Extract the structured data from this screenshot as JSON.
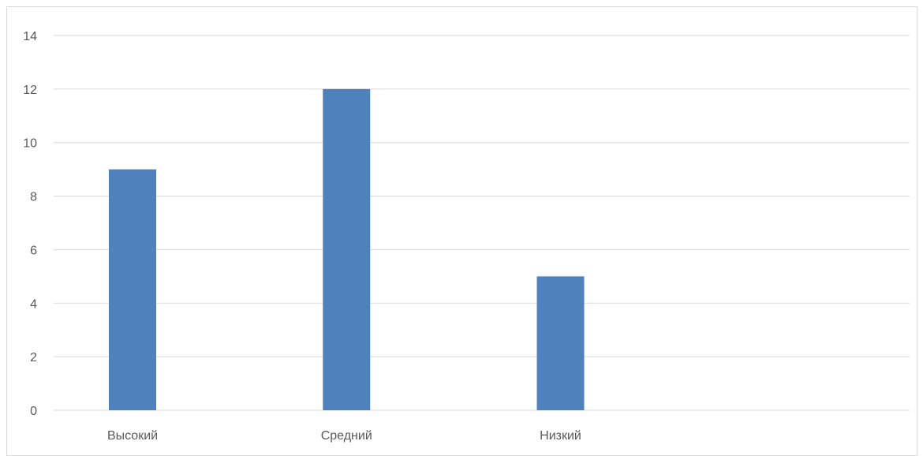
{
  "chart_data": {
    "type": "bar",
    "categories": [
      "Высокий",
      "Средний",
      "Низкий",
      ""
    ],
    "series": [
      {
        "values": [
          9,
          12,
          5,
          null
        ]
      }
    ],
    "ylim": [
      0,
      14
    ],
    "yticks": [
      0,
      2,
      4,
      6,
      8,
      10,
      12,
      14
    ],
    "grid": true,
    "bar_color": "#4f81bd",
    "grid_color": "#d9d9d9",
    "tick_label_color": "#595959"
  }
}
